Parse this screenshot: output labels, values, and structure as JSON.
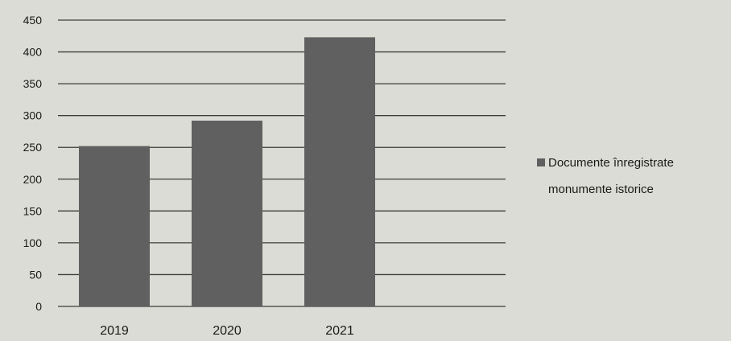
{
  "chart_data": {
    "type": "bar",
    "title": "",
    "xlabel": "",
    "ylabel": "",
    "categories": [
      "2019",
      "2020",
      "2021"
    ],
    "series": [
      {
        "name": "Documente înregistrate monumente istorice",
        "values": [
          252,
          292,
          423
        ]
      }
    ],
    "ylim": [
      0,
      450
    ],
    "yticks": [
      "0",
      "50",
      "100",
      "150",
      "200",
      "250",
      "300",
      "350",
      "400",
      "450"
    ],
    "grid": true,
    "legend_position": "right",
    "colors": {
      "bar": "#606060",
      "grid": "#3c3c3c",
      "background": "#dcdcd6",
      "text": "#1a1a1a"
    }
  },
  "legend": {
    "line1": "Documente înregistrate",
    "line2": "monumente istorice"
  }
}
